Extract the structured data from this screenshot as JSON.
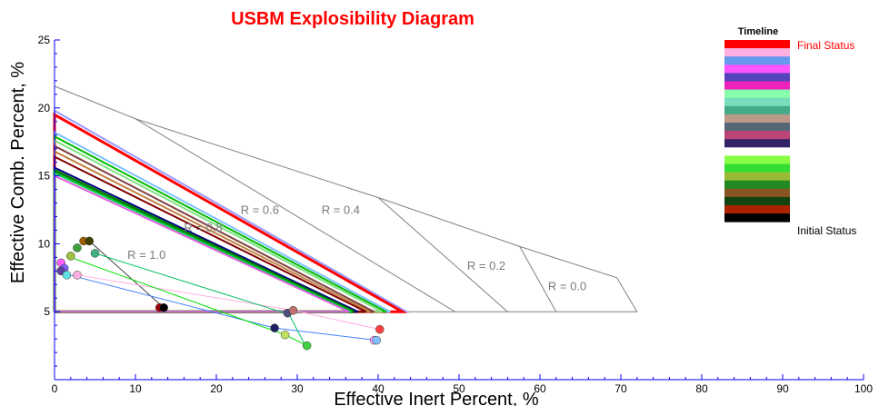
{
  "chart_data": {
    "type": "scatter",
    "title": "USBM Explosibility Diagram",
    "xlabel": "Effective Inert Percent, %",
    "ylabel": "Effective Comb. Percent, %",
    "xlim": [
      0,
      100
    ],
    "ylim": [
      0,
      25
    ],
    "x_ticks": [
      0,
      10,
      20,
      30,
      40,
      50,
      60,
      70,
      80,
      90,
      100
    ],
    "y_ticks": [
      5,
      10,
      15,
      20,
      25
    ],
    "grid": false,
    "region_boundary": {
      "color": "#808080",
      "points": [
        [
          0,
          21.6
        ],
        [
          10,
          19.2
        ],
        [
          40,
          13.4
        ],
        [
          57.5,
          9.8
        ],
        [
          69.5,
          7.5
        ],
        [
          72,
          5
        ],
        [
          0,
          5
        ]
      ]
    },
    "r_lines": [
      {
        "label": "R = 0.4",
        "from": [
          10,
          19.2
        ],
        "to": [
          49.5,
          5
        ],
        "label_at": [
          33,
          12.2
        ]
      },
      {
        "label": "R = 0.2",
        "from": [
          40,
          13.4
        ],
        "to": [
          56,
          5
        ],
        "label_at": [
          51,
          8.1
        ]
      },
      {
        "label": "R = 0.0",
        "from": [
          57.5,
          9.8
        ],
        "to": [
          62,
          5
        ],
        "label_at": [
          61,
          6.6
        ]
      }
    ],
    "r_labels": [
      {
        "label": "R = 0.6",
        "at": [
          23,
          12.2
        ]
      },
      {
        "label": "R = 0.8",
        "at": [
          16,
          10.9
        ]
      },
      {
        "label": "R = 1.0",
        "at": [
          9,
          8.9
        ]
      }
    ],
    "envelopes": [
      {
        "color": "#9999ff",
        "top": 19.8,
        "xmax": 43.5,
        "width": 2
      },
      {
        "color": "#ff0000",
        "top": 19.5,
        "xmax": 43.0,
        "width": 3
      },
      {
        "color": "#80c0ff",
        "top": 18.2,
        "xmax": 41.5,
        "width": 2
      },
      {
        "color": "#00bb00",
        "top": 17.9,
        "xmax": 41.0,
        "width": 2
      },
      {
        "color": "#80e080",
        "top": 17.6,
        "xmax": 40.5,
        "width": 2
      },
      {
        "color": "#804040",
        "top": 17.2,
        "xmax": 39.5,
        "width": 2
      },
      {
        "color": "#c08040",
        "top": 16.8,
        "xmax": 39.0,
        "width": 2
      },
      {
        "color": "#800000",
        "top": 16.4,
        "xmax": 38.5,
        "width": 2
      },
      {
        "color": "#000080",
        "top": 15.6,
        "xmax": 37.5,
        "width": 2
      },
      {
        "color": "#008000",
        "top": 15.4,
        "xmax": 37.0,
        "width": 3
      },
      {
        "color": "#00d040",
        "top": 15.2,
        "xmax": 36.7,
        "width": 2
      },
      {
        "color": "#e060e0",
        "top": 15.0,
        "xmax": 36.4,
        "width": 2
      }
    ],
    "trajectories": [
      {
        "color": "#404040",
        "points": [
          [
            4.3,
            10.2
          ],
          [
            13.5,
            5.3
          ]
        ]
      },
      {
        "color": "#ff6060",
        "points": [
          [
            0.8,
            8.2
          ],
          [
            1.5,
            8.1
          ]
        ]
      },
      {
        "color": "#ffb0e0",
        "points": [
          [
            2.8,
            7.7
          ],
          [
            29.5,
            5.1
          ],
          [
            40.2,
            3.7
          ]
        ]
      },
      {
        "color": "#4080ff",
        "points": [
          [
            1.2,
            7.8
          ],
          [
            27.2,
            3.8
          ],
          [
            39.8,
            2.9
          ]
        ]
      },
      {
        "color": "#00c060",
        "points": [
          [
            5.0,
            9.3
          ],
          [
            29.0,
            4.8
          ],
          [
            31.0,
            2.5
          ]
        ]
      },
      {
        "color": "#00e000",
        "points": [
          [
            2.0,
            9.0
          ],
          [
            28.5,
            3.3
          ],
          [
            31.2,
            2.5
          ]
        ]
      }
    ],
    "points": [
      {
        "x": 0.8,
        "y": 8.6,
        "color": "#ff60ff"
      },
      {
        "x": 1.2,
        "y": 8.2,
        "color": "#8060ff"
      },
      {
        "x": 0.8,
        "y": 8.0,
        "color": "#6040a0"
      },
      {
        "x": 1.5,
        "y": 7.7,
        "color": "#60e0e0"
      },
      {
        "x": 2.8,
        "y": 7.7,
        "color": "#ffb0e0"
      },
      {
        "x": 2.0,
        "y": 9.1,
        "color": "#a0c040"
      },
      {
        "x": 2.8,
        "y": 9.7,
        "color": "#40a040"
      },
      {
        "x": 3.6,
        "y": 10.2,
        "color": "#a06000"
      },
      {
        "x": 4.3,
        "y": 10.2,
        "color": "#404000"
      },
      {
        "x": 5.0,
        "y": 9.3,
        "color": "#40b080"
      },
      {
        "x": 13.0,
        "y": 5.3,
        "color": "#a00000"
      },
      {
        "x": 13.5,
        "y": 5.3,
        "color": "#000000"
      },
      {
        "x": 28.8,
        "y": 4.9,
        "color": "#505080"
      },
      {
        "x": 29.5,
        "y": 5.1,
        "color": "#c07070"
      },
      {
        "x": 27.2,
        "y": 3.8,
        "color": "#202060"
      },
      {
        "x": 28.5,
        "y": 3.3,
        "color": "#c0e060"
      },
      {
        "x": 31.2,
        "y": 2.5,
        "color": "#40d040"
      },
      {
        "x": 39.5,
        "y": 2.9,
        "color": "#ffa0ff"
      },
      {
        "x": 39.8,
        "y": 2.9,
        "color": "#80c0ff"
      },
      {
        "x": 40.2,
        "y": 3.7,
        "color": "#ff4040"
      }
    ],
    "legend": {
      "title": "Timeline",
      "position": "right",
      "top_label": "Final Status",
      "bottom_label": "Initial Status",
      "top_label_color": "#ff0000",
      "bottom_label_color": "#000000",
      "swatches": [
        "#ff0000",
        "#ffb0e0",
        "#6699ee",
        "#ff55ff",
        "#5544bb",
        "#ee22bb",
        "#88ffaa",
        "#77ddbb",
        "#44aa88",
        "#bb9988",
        "#556677",
        "#bb4477",
        "#332266",
        "#ffffff",
        "#88ff44",
        "#33dd33",
        "#99bb33",
        "#228822",
        "#885522",
        "#114411",
        "#aa2200",
        "#000000"
      ]
    }
  }
}
